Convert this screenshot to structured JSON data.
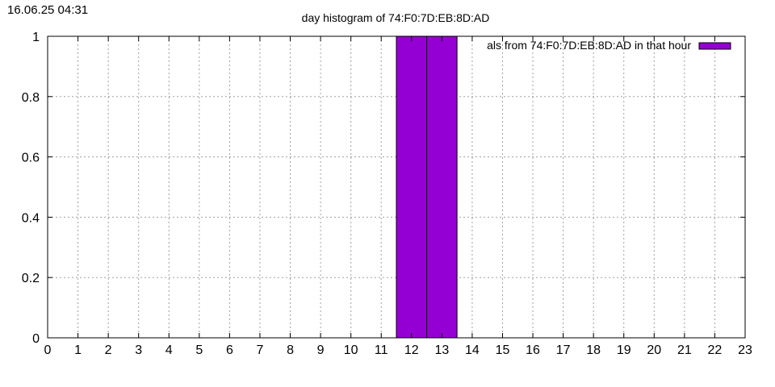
{
  "timestamp": "16.06.25 04:31",
  "chart_data": {
    "type": "bar",
    "title": "day histogram of 74:F0:7D:EB:8D:AD",
    "xlabel": "",
    "ylabel": "",
    "xlim": [
      0,
      23
    ],
    "ylim": [
      0,
      1
    ],
    "x_ticks": [
      "0",
      "1",
      "2",
      "3",
      "4",
      "5",
      "6",
      "7",
      "8",
      "9",
      "10",
      "11",
      "12",
      "13",
      "14",
      "15",
      "16",
      "17",
      "18",
      "19",
      "20",
      "21",
      "22",
      "23"
    ],
    "y_ticks": [
      "0",
      "0.2",
      "0.4",
      "0.6",
      "0.8",
      "1"
    ],
    "grid": true,
    "legend_position": "top-right",
    "series": [
      {
        "name": "als from 74:F0:7D:EB:8D:AD in that hour",
        "color": "#9400d3",
        "points": [
          {
            "x": 12,
            "y": 1
          },
          {
            "x": 13,
            "y": 1
          }
        ]
      }
    ]
  }
}
